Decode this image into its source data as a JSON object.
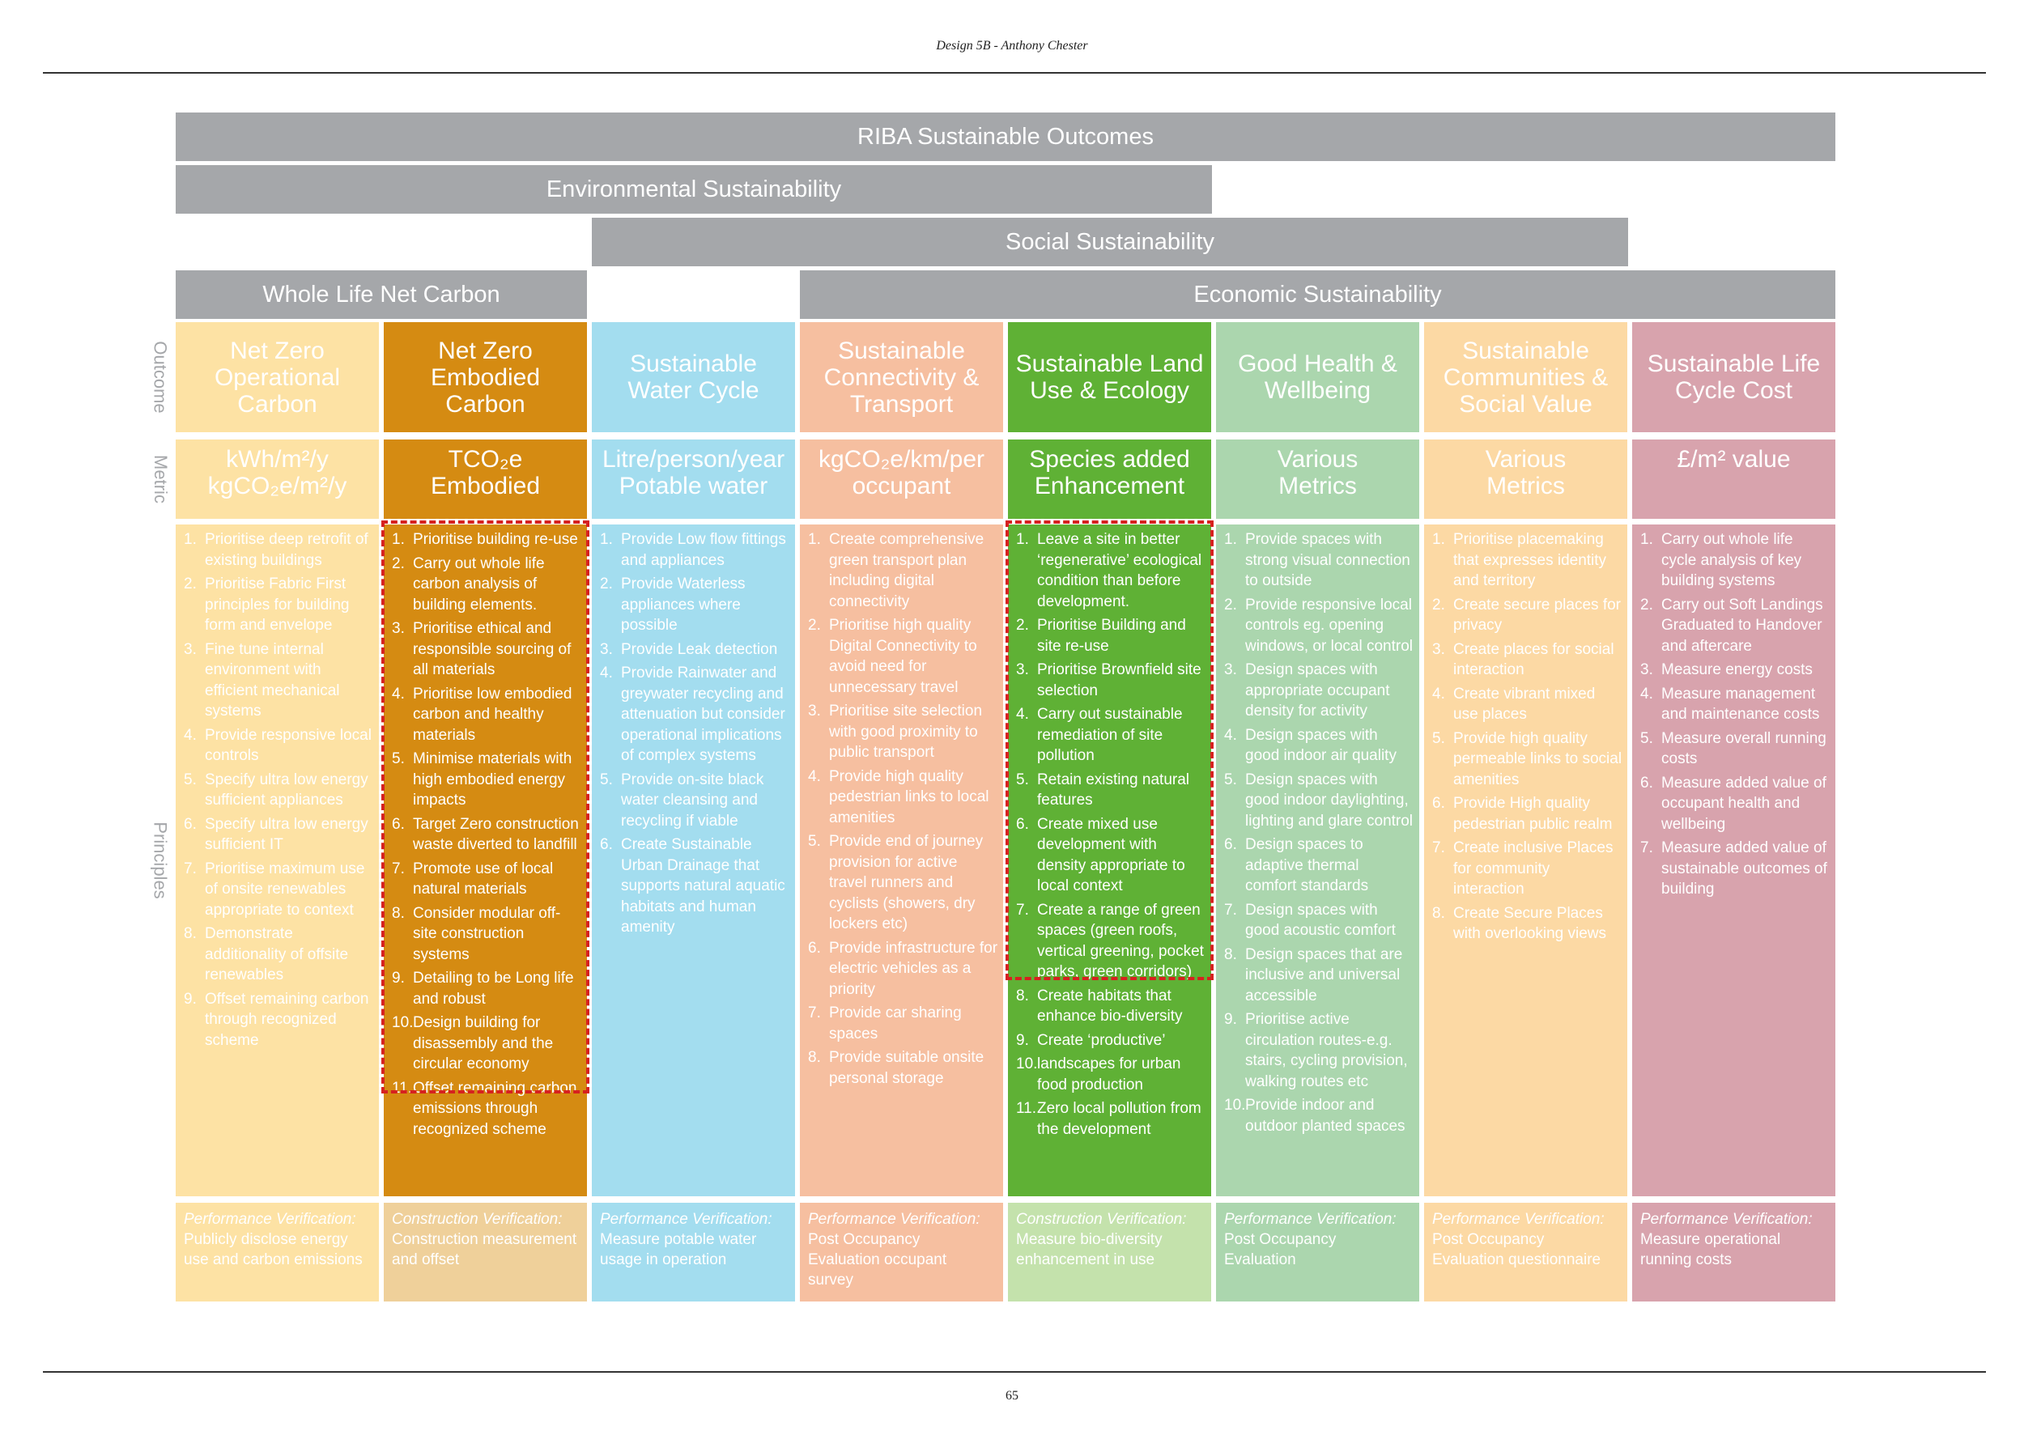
{
  "header": {
    "title": "Design 5B  - Anthony Chester"
  },
  "footer": {
    "page_number": "65"
  },
  "bars": {
    "riba": "RIBA Sustainable Outcomes",
    "environmental": "Environmental Sustainability",
    "social": "Social Sustainability",
    "carbon": "Whole Life Net Carbon",
    "economic": "Economic Sustainability"
  },
  "side_labels": {
    "outcome": "Outcome",
    "metric": "Metric",
    "principles": "Principles"
  },
  "colors": {
    "bar_grey": "#a5a7aa",
    "highlight_dash": "#d6211f"
  },
  "columns": [
    {
      "outcome": "Net Zero Operational Carbon",
      "metric_lines": [
        "kWh/m²/y",
        "kgCO₂e/m²/y"
      ],
      "principles": [
        {
          "num": "1.",
          "text": "Prioritise deep retrofit of existing buildings"
        },
        {
          "num": "2.",
          "text": "Prioritise Fabric First principles for building form and envelope"
        },
        {
          "num": "3.",
          "text": "Fine tune internal environment with efficient mechanical systems"
        },
        {
          "num": "4.",
          "text": "Provide responsive local controls"
        },
        {
          "num": "5.",
          "text": "Specify ultra low energy sufficient appliances"
        },
        {
          "num": "6.",
          "text": "Specify ultra low energy sufficient IT"
        },
        {
          "num": "7.",
          "text": "Prioritise maximum use of onsite renewables appropriate to context"
        },
        {
          "num": "8.",
          "text": "Demonstrate additionality of offsite renewables"
        },
        {
          "num": "9.",
          "text": "Offset remaining carbon through recognized scheme"
        }
      ],
      "verify_title": "Performance Verification:",
      "verify_text": "Publicly disclose energy use and carbon emissions",
      "color_main": "#fde2a4",
      "color_verify": "#fde2a4"
    },
    {
      "outcome": "Net Zero Embodied Carbon",
      "metric_lines": [
        "TCO₂e",
        "Embodied"
      ],
      "principles": [
        {
          "num": "1.",
          "text": "Prioritise building re-use"
        },
        {
          "num": "2.",
          "text": "Carry out whole life carbon analysis of building elements."
        },
        {
          "num": "3.",
          "text": "Prioritise ethical and responsible sourcing of all materials"
        },
        {
          "num": "4.",
          "text": "Prioritise low embodied carbon and healthy materials"
        },
        {
          "num": "5.",
          "text": "Minimise materials with high embodied energy impacts"
        },
        {
          "num": "6.",
          "text": "Target Zero construction waste diverted to landfill"
        },
        {
          "num": "7.",
          "text": "Promote use of local natural materials"
        },
        {
          "num": "8.",
          "text": "Consider modular off-site construction systems"
        },
        {
          "num": "9.",
          "text": "Detailing to be Long life and robust"
        },
        {
          "num": "10.",
          "text": "Design building for disassembly and the circular economy"
        },
        {
          "num": "11.",
          "text": "Offset remaining carbon emissions through recognized scheme"
        }
      ],
      "verify_title": "Construction Verification:",
      "verify_text": "Construction measurement and offset",
      "color_main": "#d58b12",
      "color_verify": "#efd09a"
    },
    {
      "outcome": "Sustainable Water Cycle",
      "metric_lines": [
        "Litre/person/year",
        "Potable water"
      ],
      "principles": [
        {
          "num": "1.",
          "text": "Provide Low flow fittings and appliances"
        },
        {
          "num": "2.",
          "text": "Provide Waterless appliances where possible"
        },
        {
          "num": "3.",
          "text": "Provide Leak detection"
        },
        {
          "num": "4.",
          "text": "Provide Rainwater and greywater recycling and attenuation but consider operational implications of complex systems"
        },
        {
          "num": "5.",
          "text": "Provide on-site black water cleansing and recycling if viable"
        },
        {
          "num": "6.",
          "text": "Create Sustainable Urban Drainage that supports natural aquatic habitats and human amenity"
        }
      ],
      "verify_title": "Performance Verification:",
      "verify_text": "Measure potable water usage in operation",
      "color_main": "#a3ddef",
      "color_verify": "#a3ddef"
    },
    {
      "outcome": "Sustainable Connectivity & Transport",
      "metric_lines": [
        "kgCO₂e/km/per",
        "occupant"
      ],
      "principles": [
        {
          "num": "1.",
          "text": "Create comprehensive green transport plan including digital connectivity"
        },
        {
          "num": "2.",
          "text": "Prioritise high quality Digital Connectivity to avoid need for unnecessary travel"
        },
        {
          "num": "3.",
          "text": "Prioritise site selection with good proximity to public transport"
        },
        {
          "num": "4.",
          "text": "Provide high quality pedestrian links to local amenities"
        },
        {
          "num": "5.",
          "text": "Provide end of journey provision for active travel runners and cyclists (showers, dry lockers etc)"
        },
        {
          "num": "6.",
          "text": "Provide infrastructure for electric vehicles as a priority"
        },
        {
          "num": "7.",
          "text": "Provide car sharing spaces"
        },
        {
          "num": "8.",
          "text": "Provide suitable onsite personal storage"
        }
      ],
      "verify_title": "Performance Verification:",
      "verify_text": "Post Occupancy Evaluation occupant survey",
      "color_main": "#f6bfa0",
      "color_verify": "#f6bfa0"
    },
    {
      "outcome": "Sustainable Land Use & Ecology",
      "metric_lines": [
        "Species added",
        "Enhancement"
      ],
      "principles": [
        {
          "num": "1.",
          "text": "Leave a site in better ‘regenerative’ ecological condition than before development."
        },
        {
          "num": "2.",
          "text": "Prioritise Building and site re-use"
        },
        {
          "num": "3.",
          "text": "Prioritise Brownfield site selection"
        },
        {
          "num": "4.",
          "text": "Carry out sustainable remediation of site pollution"
        },
        {
          "num": "5.",
          "text": "Retain existing natural features"
        },
        {
          "num": "6.",
          "text": "Create mixed use development with density appropriate to local context"
        },
        {
          "num": "7.",
          "text": "Create a range of green spaces (green roofs, vertical greening, pocket parks, green corridors)"
        },
        {
          "num": "8.",
          "text": "Create habitats that enhance bio-diversity"
        },
        {
          "num": "9.",
          "text": "Create ‘productive’"
        },
        {
          "num": "10.",
          "text": "landscapes for urban food production"
        },
        {
          "num": "11.",
          "text": "Zero local pollution from the development"
        }
      ],
      "verify_title": "Construction Verification:",
      "verify_text": "Measure bio-diversity enhancement in use",
      "color_main": "#5fb135",
      "color_verify": "#c4e2ac"
    },
    {
      "outcome": "Good Health & Wellbeing",
      "metric_lines": [
        "Various",
        "Metrics"
      ],
      "principles": [
        {
          "num": "1.",
          "text": "Provide spaces with strong visual connection to outside"
        },
        {
          "num": "2.",
          "text": "Provide responsive local controls eg. opening windows, or local control"
        },
        {
          "num": "3.",
          "text": "Design spaces with appropriate occupant density for activity"
        },
        {
          "num": "4.",
          "text": "Design spaces with good indoor air quality"
        },
        {
          "num": "5.",
          "text": "Design spaces with good indoor daylighting, lighting and glare control"
        },
        {
          "num": "6.",
          "text": "Design spaces to adaptive thermal comfort standards"
        },
        {
          "num": "7.",
          "text": "Design spaces with good acoustic comfort"
        },
        {
          "num": "8.",
          "text": "Design spaces that are inclusive and universal accessible"
        },
        {
          "num": "9.",
          "text": "Prioritise active circulation routes-e.g. stairs, cycling provision, walking routes etc"
        },
        {
          "num": "10.",
          "text": "Provide indoor and outdoor planted spaces"
        }
      ],
      "verify_title": "Performance Verification:",
      "verify_text": "Post Occupancy Evaluation",
      "color_main": "#abd6ae",
      "color_verify": "#abd6ae"
    },
    {
      "outcome": "Sustainable Communities & Social Value",
      "metric_lines": [
        "Various",
        "Metrics"
      ],
      "principles": [
        {
          "num": "1.",
          "text": "Prioritise placemaking that expresses identity and territory"
        },
        {
          "num": "2.",
          "text": "Create secure places for privacy"
        },
        {
          "num": "3.",
          "text": "Create places for social interaction"
        },
        {
          "num": "4.",
          "text": "Create vibrant mixed use places"
        },
        {
          "num": "5.",
          "text": "Provide high quality permeable links to social amenities"
        },
        {
          "num": "6.",
          "text": "Provide High quality pedestrian public realm"
        },
        {
          "num": "7.",
          "text": "Create inclusive Places for community interaction"
        },
        {
          "num": "8.",
          "text": "Create Secure Places with overlooking views"
        }
      ],
      "verify_title": "Performance Verification:",
      "verify_text": "Post Occupancy Evaluation questionnaire",
      "color_main": "#fcd9a4",
      "color_verify": "#fcd9a4"
    },
    {
      "outcome": "Sustainable Life Cycle Cost",
      "metric_lines": [
        "£/m² value"
      ],
      "principles": [
        {
          "num": "1.",
          "text": "Carry out whole life cycle analysis of key building systems"
        },
        {
          "num": "2.",
          "text": "Carry out Soft Landings Graduated to Handover and aftercare"
        },
        {
          "num": "3.",
          "text": "Measure energy costs"
        },
        {
          "num": "4.",
          "text": "Measure management and maintenance costs"
        },
        {
          "num": "5.",
          "text": "Measure overall running costs"
        },
        {
          "num": "6.",
          "text": "Measure added value of occupant health and wellbeing"
        },
        {
          "num": "7.",
          "text": "Measure added value of sustainable outcomes of building"
        }
      ],
      "verify_title": "Performance Verification:",
      "verify_text": "Measure operational running costs",
      "color_main": "#d8a3ad",
      "color_verify": "#d8a3ad"
    }
  ]
}
